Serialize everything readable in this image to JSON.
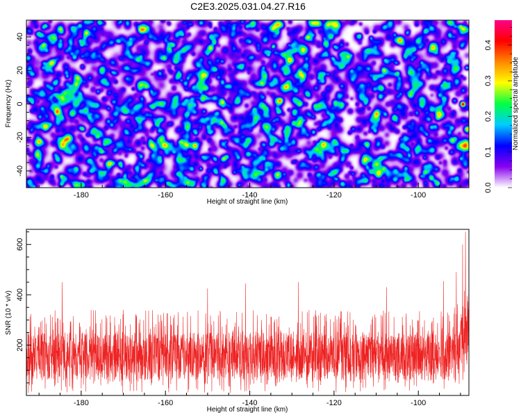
{
  "title": "C2E3.2025.031.04.27.R16",
  "chart_data": [
    {
      "type": "heatmap",
      "xlabel": "Height of straight line (km)",
      "ylabel": "Frequency (Hz)",
      "xlim": [
        -193,
        -88
      ],
      "ylim": [
        -50,
        50
      ],
      "xticks": [
        -180,
        -160,
        -140,
        -120,
        -100
      ],
      "yticks": [
        -40,
        -20,
        0,
        20,
        40
      ],
      "colorbar": {
        "label": "Normalized spectral amplitude",
        "range": [
          0,
          0.47
        ],
        "ticks": [
          0.0,
          0.1,
          0.2,
          0.3,
          0.4
        ],
        "tick_labels": [
          "0.0",
          "0.1",
          "0.2",
          "0.3",
          "0.4"
        ],
        "colormap": [
          "#ffffff",
          "#8800ee",
          "#0000ff",
          "#00ccff",
          "#00ff44",
          "#ffff00",
          "#ff8800",
          "#ff0000",
          "#ff0088"
        ]
      },
      "background_level": 0.06,
      "peaks": [
        {
          "x": -89.5,
          "y": 0,
          "value": 0.45
        },
        {
          "x": -91.5,
          "y": 2,
          "value": 0.16
        },
        {
          "x": -88.5,
          "y": -2,
          "value": 0.14
        }
      ]
    },
    {
      "type": "line",
      "xlabel": "Height of straight line (km)",
      "ylabel": "SNR (10 * v/v)",
      "xlim": [
        -193,
        -88
      ],
      "ylim": [
        0,
        660
      ],
      "xticks": [
        -180,
        -160,
        -140,
        -120,
        -100
      ],
      "yticks": [
        200,
        400,
        600
      ],
      "line_color": "#ee2222",
      "series": [
        {
          "x_range": [
            -193,
            -88
          ],
          "typical_range": [
            60,
            250
          ],
          "typical_mean": 140,
          "spikes": [
            {
              "x": -184.5,
              "y": 450
            },
            {
              "x": -150,
              "y": 425
            },
            {
              "x": -141,
              "y": 445
            },
            {
              "x": -128.5,
              "y": 450
            },
            {
              "x": -107.5,
              "y": 430
            },
            {
              "x": -94,
              "y": 455
            },
            {
              "x": -91,
              "y": 490
            },
            {
              "x": -89.5,
              "y": 600
            },
            {
              "x": -88.8,
              "y": 650
            }
          ]
        }
      ]
    }
  ]
}
